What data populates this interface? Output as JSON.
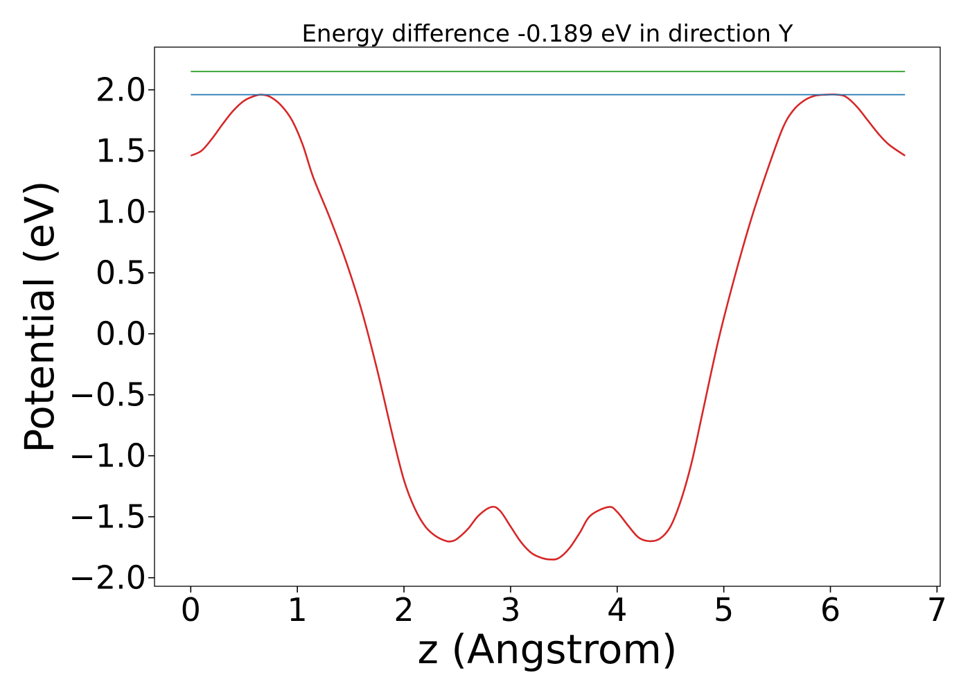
{
  "chart_data": {
    "type": "line",
    "title": "Energy difference -0.189 eV in direction Y",
    "xlabel": "z (Angstrom)",
    "ylabel": "Potential (eV)",
    "xlim": [
      -0.34,
      7.03
    ],
    "ylim": [
      -2.07,
      2.35
    ],
    "xticks": [
      0,
      1,
      2,
      3,
      4,
      5,
      6,
      7
    ],
    "xtick_labels": [
      "0",
      "1",
      "2",
      "3",
      "4",
      "5",
      "6",
      "7"
    ],
    "yticks": [
      -2.0,
      -1.5,
      -1.0,
      -0.5,
      0.0,
      0.5,
      1.0,
      1.5,
      2.0
    ],
    "ytick_labels": [
      "−2.0",
      "−1.5",
      "−1.0",
      "−0.5",
      "0.0",
      "0.5",
      "1.0",
      "1.5",
      "2.0"
    ],
    "grid": false,
    "legend": "none",
    "series": [
      {
        "color": "#d62728",
        "x": [
          0.0,
          0.1,
          0.2,
          0.3,
          0.4,
          0.5,
          0.6,
          0.67,
          0.75,
          0.85,
          0.95,
          1.05,
          1.15,
          1.3,
          1.45,
          1.6,
          1.75,
          1.9,
          2.0,
          2.1,
          2.2,
          2.3,
          2.4,
          2.45,
          2.5,
          2.6,
          2.7,
          2.82,
          2.9,
          3.0,
          3.1,
          3.2,
          3.3,
          3.37,
          3.45,
          3.55,
          3.65,
          3.75,
          3.92,
          4.0,
          4.1,
          4.2,
          4.3,
          4.4,
          4.5,
          4.6,
          4.7,
          4.8,
          4.95,
          5.1,
          5.25,
          5.4,
          5.55,
          5.65,
          5.75,
          5.85,
          5.95,
          6.07,
          6.15,
          6.25,
          6.35,
          6.45,
          6.55,
          6.7
        ],
        "y": [
          1.46,
          1.5,
          1.6,
          1.72,
          1.83,
          1.91,
          1.95,
          1.96,
          1.94,
          1.87,
          1.75,
          1.55,
          1.28,
          0.96,
          0.61,
          0.2,
          -0.3,
          -0.86,
          -1.2,
          -1.43,
          -1.58,
          -1.66,
          -1.7,
          -1.7,
          -1.68,
          -1.6,
          -1.49,
          -1.42,
          -1.45,
          -1.58,
          -1.71,
          -1.8,
          -1.84,
          -1.85,
          -1.84,
          -1.76,
          -1.63,
          -1.49,
          -1.42,
          -1.46,
          -1.57,
          -1.67,
          -1.7,
          -1.68,
          -1.58,
          -1.36,
          -1.05,
          -0.65,
          -0.05,
          0.46,
          0.92,
          1.32,
          1.68,
          1.83,
          1.91,
          1.95,
          1.96,
          1.96,
          1.94,
          1.86,
          1.75,
          1.64,
          1.55,
          1.46
        ]
      },
      {
        "color": "#1f77b4",
        "x": [
          0.0,
          6.7
        ],
        "y": [
          1.96,
          1.96
        ]
      },
      {
        "color": "#2ca02c",
        "x": [
          0.0,
          6.7
        ],
        "y": [
          2.15,
          2.15
        ]
      }
    ]
  }
}
